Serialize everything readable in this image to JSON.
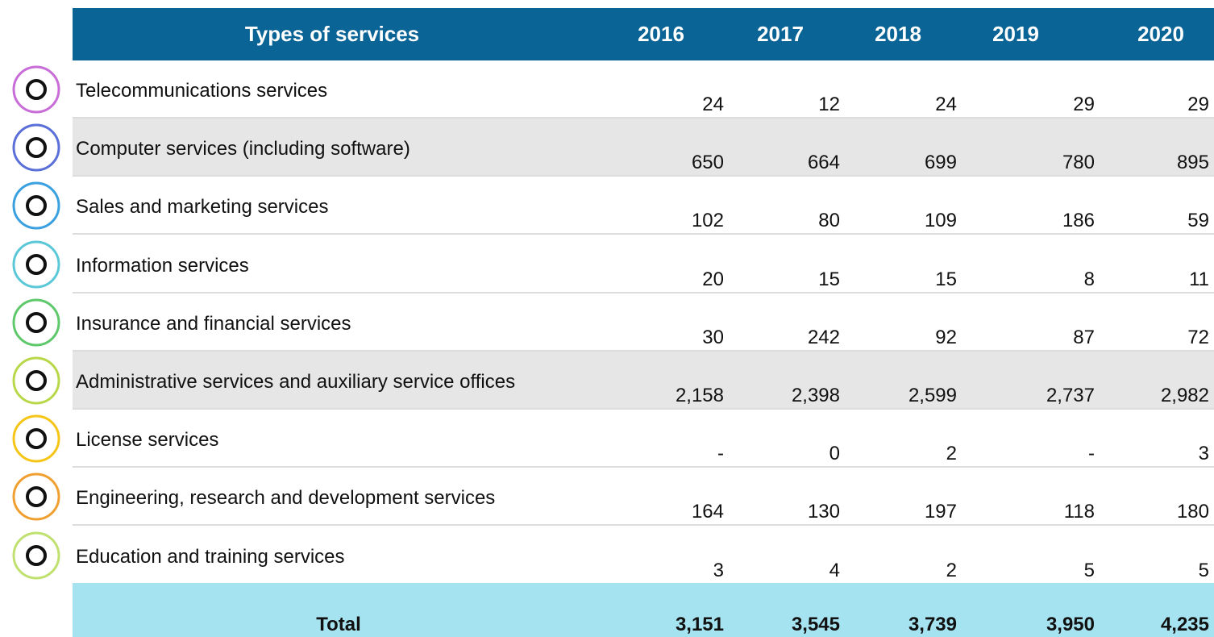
{
  "table": {
    "header": [
      "Types of services",
      "2016",
      "2017",
      "2018",
      "2019",
      "2020"
    ],
    "rows": [
      [
        "Telecommunications services",
        "24",
        "12",
        "24",
        "29",
        "29"
      ],
      [
        "Computer services (including software)",
        "650",
        "664",
        "699",
        "780",
        "895"
      ],
      [
        "Sales and marketing services",
        "102",
        "80",
        "109",
        "186",
        "59"
      ],
      [
        "Information services",
        "20",
        "15",
        "15",
        "8",
        "11"
      ],
      [
        "Insurance and financial services",
        "30",
        "242",
        "92",
        "87",
        "72"
      ],
      [
        "Administrative services and auxiliary service offices",
        "2,158",
        "2,398",
        "2,599",
        "2,737",
        "2,982"
      ],
      [
        "License services",
        "-",
        "0",
        "2",
        "-",
        "3"
      ],
      [
        "Engineering, research and development services",
        "164",
        "130",
        "197",
        "118",
        "180"
      ],
      [
        "Education and training services",
        "3",
        "4",
        "2",
        "5",
        "5"
      ]
    ],
    "total": [
      "Total",
      "3,151",
      "3,545",
      "3,739",
      "3,950",
      "4,235"
    ]
  }
}
